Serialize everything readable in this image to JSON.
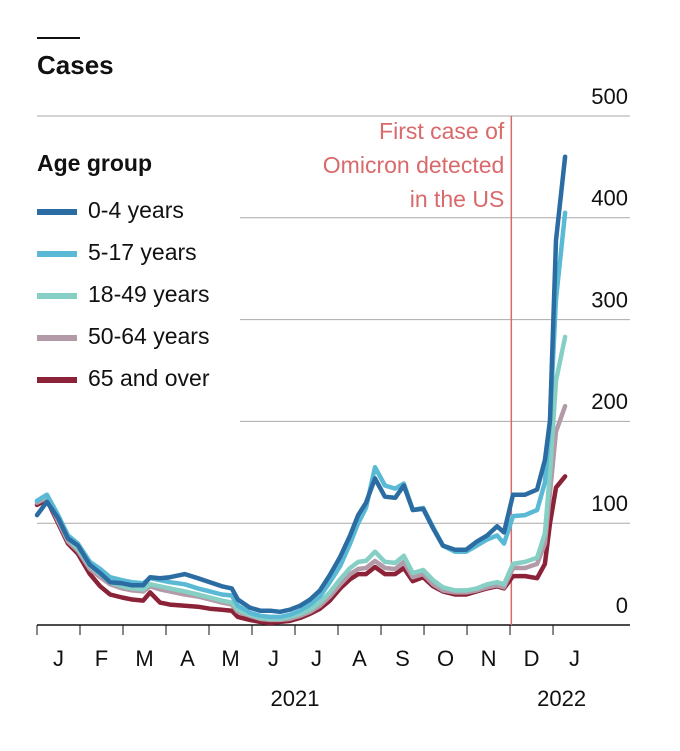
{
  "chart_data": {
    "type": "line",
    "title": "Cases",
    "legend_title": "Age group",
    "x": [
      0,
      0.23,
      0.49,
      0.72,
      0.95,
      1.23,
      1.47,
      1.7,
      1.98,
      2.21,
      2.47,
      2.63,
      2.86,
      3.09,
      3.44,
      3.74,
      4.02,
      4.3,
      4.53,
      4.67,
      4.95,
      5.19,
      5.42,
      5.65,
      5.88,
      6.12,
      6.35,
      6.58,
      6.81,
      7.05,
      7.28,
      7.47,
      7.65,
      7.86,
      8.09,
      8.33,
      8.53,
      8.74,
      8.98,
      9.21,
      9.44,
      9.72,
      9.98,
      10.23,
      10.47,
      10.7,
      10.86,
      11.07,
      11.35,
      11.63,
      11.81,
      11.93,
      12.07,
      12.28
    ],
    "series": [
      {
        "name": "0-4 years",
        "color": "#2b6ca3",
        "values": [
          108,
          121,
          105,
          85,
          78,
          59,
          51,
          42,
          41,
          39,
          39,
          47,
          46,
          47,
          50,
          46,
          42,
          38,
          36,
          25,
          17,
          14,
          14,
          13,
          15,
          19,
          25,
          34,
          49,
          67,
          88,
          108,
          120,
          144,
          126,
          125,
          137,
          113,
          114,
          95,
          78,
          74,
          74,
          82,
          88,
          97,
          91,
          128,
          128,
          133,
          162,
          201,
          378,
          460
        ]
      },
      {
        "name": "5-17 years",
        "color": "#5ab9d4",
        "values": [
          122,
          128,
          108,
          88,
          80,
          62,
          55,
          47,
          44,
          42,
          41,
          46,
          44,
          42,
          40,
          36,
          33,
          30,
          29,
          19,
          12,
          9,
          8,
          8,
          10,
          14,
          20,
          28,
          42,
          58,
          80,
          100,
          115,
          155,
          137,
          134,
          139,
          113,
          115,
          96,
          78,
          72,
          72,
          78,
          84,
          88,
          80,
          107,
          108,
          113,
          140,
          200,
          320,
          405
        ]
      },
      {
        "name": "18-49 years",
        "color": "#86cfc4",
        "values": [
          122,
          127,
          105,
          85,
          75,
          58,
          50,
          42,
          38,
          36,
          35,
          40,
          38,
          36,
          33,
          30,
          27,
          24,
          22,
          15,
          10,
          7,
          6,
          6,
          8,
          11,
          15,
          22,
          32,
          45,
          56,
          62,
          63,
          72,
          62,
          61,
          68,
          51,
          54,
          44,
          37,
          34,
          34,
          36,
          40,
          42,
          40,
          60,
          62,
          66,
          90,
          150,
          240,
          283
        ]
      },
      {
        "name": "50-64 years",
        "color": "#b39aa8",
        "values": [
          120,
          125,
          102,
          82,
          73,
          55,
          47,
          40,
          36,
          34,
          33,
          38,
          35,
          33,
          30,
          28,
          25,
          22,
          20,
          13,
          9,
          6,
          5,
          5,
          6,
          9,
          13,
          19,
          28,
          40,
          50,
          55,
          56,
          63,
          56,
          55,
          62,
          47,
          50,
          40,
          34,
          32,
          32,
          34,
          37,
          39,
          37,
          56,
          56,
          60,
          80,
          130,
          190,
          215
        ]
      },
      {
        "name": "65 and over",
        "color": "#8c2238",
        "values": [
          118,
          123,
          100,
          80,
          70,
          50,
          38,
          30,
          27,
          25,
          24,
          32,
          22,
          20,
          19,
          18,
          16,
          15,
          14,
          8,
          5,
          3,
          2,
          3,
          4,
          7,
          11,
          16,
          24,
          36,
          45,
          50,
          50,
          57,
          50,
          50,
          56,
          43,
          47,
          38,
          33,
          30,
          30,
          33,
          36,
          38,
          36,
          48,
          48,
          46,
          60,
          100,
          135,
          146
        ]
      }
    ],
    "xlim": [
      0,
      13.79
    ],
    "xticks": [
      {
        "value": 0,
        "label": "J"
      },
      {
        "value": 1,
        "label": "F"
      },
      {
        "value": 2,
        "label": "M"
      },
      {
        "value": 3,
        "label": "A"
      },
      {
        "value": 4,
        "label": "M"
      },
      {
        "value": 5,
        "label": "J"
      },
      {
        "value": 6,
        "label": "J"
      },
      {
        "value": 7,
        "label": "A"
      },
      {
        "value": 8,
        "label": "S"
      },
      {
        "value": 9,
        "label": "O"
      },
      {
        "value": 10,
        "label": "N"
      },
      {
        "value": 11,
        "label": "D"
      },
      {
        "value": 12,
        "label": "J"
      }
    ],
    "year_labels": [
      "2021",
      "2022"
    ],
    "ylim": [
      0,
      500
    ],
    "yticks": [
      0,
      100,
      200,
      300,
      400,
      500
    ],
    "grid": true,
    "annotations": [
      {
        "x": 11.03,
        "color": "#d9696b",
        "lines": [
          "First case of",
          "Omicron detected",
          "in the US"
        ]
      }
    ]
  }
}
